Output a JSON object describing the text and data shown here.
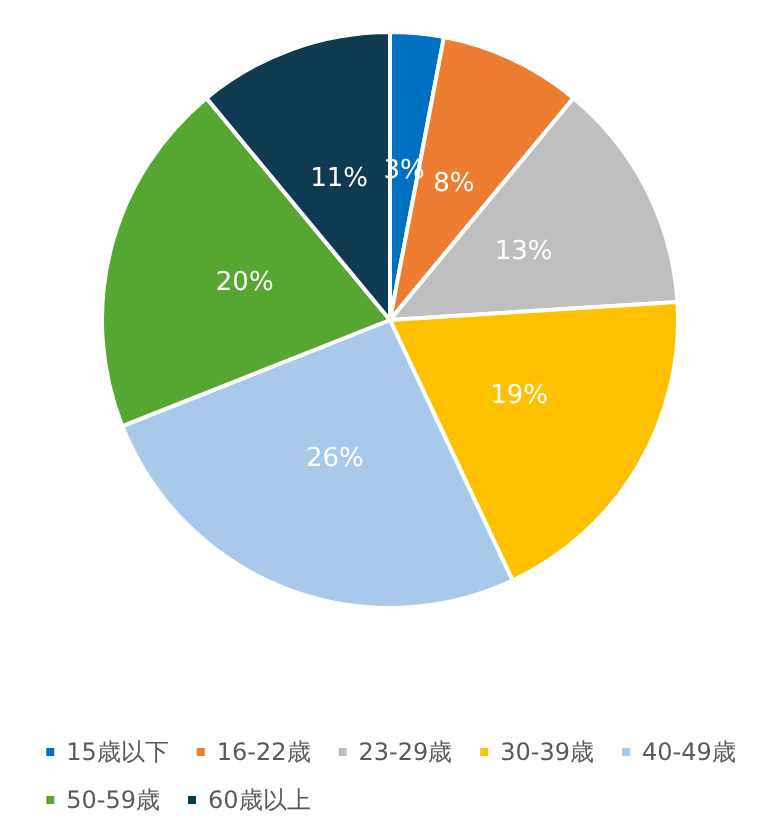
{
  "chart_data": {
    "type": "pie",
    "categories": [
      "15歳以下",
      "16-22歳",
      "23-29歳",
      "30-39歳",
      "40-49歳",
      "50-59歳",
      "60歳以上"
    ],
    "values": [
      3,
      8,
      13,
      19,
      26,
      20,
      11
    ],
    "colors": [
      "#0070c0",
      "#ed7d31",
      "#bfbfbf",
      "#ffc000",
      "#a9c9eb",
      "#56a632",
      "#0e3a52"
    ],
    "value_labels": [
      "3%",
      "8%",
      "13%",
      "19%",
      "26%",
      "20%",
      "11%"
    ],
    "legend": "bottom"
  }
}
